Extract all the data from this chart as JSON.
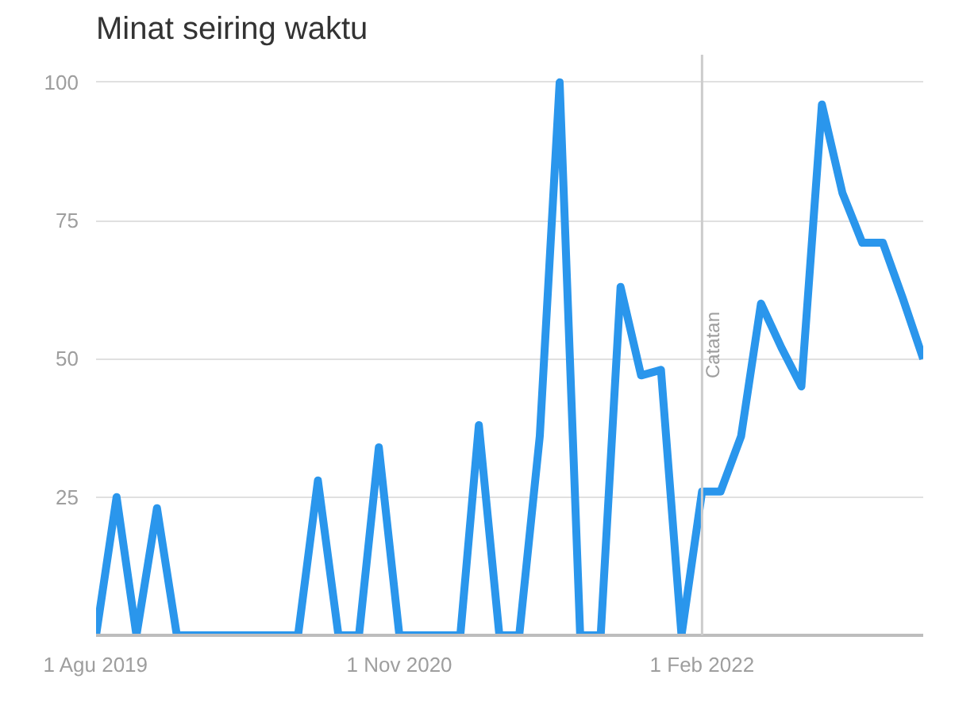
{
  "chart_data": {
    "type": "line",
    "title": "Minat seiring waktu",
    "x": [
      "2019-08",
      "2019-09",
      "2019-10",
      "2019-11",
      "2019-12",
      "2020-01",
      "2020-02",
      "2020-03",
      "2020-04",
      "2020-05",
      "2020-06",
      "2020-07",
      "2020-08",
      "2020-09",
      "2020-10",
      "2020-11",
      "2020-12",
      "2021-01",
      "2021-02",
      "2021-03",
      "2021-04",
      "2021-05",
      "2021-06",
      "2021-07",
      "2021-08",
      "2021-09",
      "2021-10",
      "2021-11",
      "2021-12",
      "2022-01",
      "2022-02",
      "2022-03",
      "2022-04",
      "2022-05",
      "2022-06",
      "2022-07",
      "2022-08",
      "2022-09",
      "2022-10",
      "2022-11",
      "2022-12",
      "2023-01"
    ],
    "series": [
      {
        "color": "#2a96ec",
        "values": [
          0,
          25,
          0,
          23,
          0,
          0,
          0,
          0,
          0,
          0,
          0,
          28,
          0,
          0,
          34,
          0,
          0,
          0,
          0,
          38,
          0,
          0,
          36,
          100,
          0,
          0,
          63,
          47,
          48,
          0,
          26,
          26,
          36,
          60,
          52,
          45,
          96,
          80,
          71,
          71,
          61,
          50
        ]
      }
    ],
    "xlim": [
      "2019-08",
      "2023-01"
    ],
    "xticks": [
      {
        "value": "2019-08",
        "label": "1 Agu 2019"
      },
      {
        "value": "2020-11",
        "label": "1 Nov 2020"
      },
      {
        "value": "2022-02",
        "label": "1 Feb 2022"
      }
    ],
    "ylim": [
      0,
      105
    ],
    "yticks": [
      25,
      50,
      75,
      100
    ],
    "grid": "y",
    "ref_lines": [
      {
        "axis": "x",
        "value": "2022-02",
        "label": "Catatan",
        "color": "#cccccc"
      }
    ],
    "line_style": "solid",
    "marker": "none"
  }
}
